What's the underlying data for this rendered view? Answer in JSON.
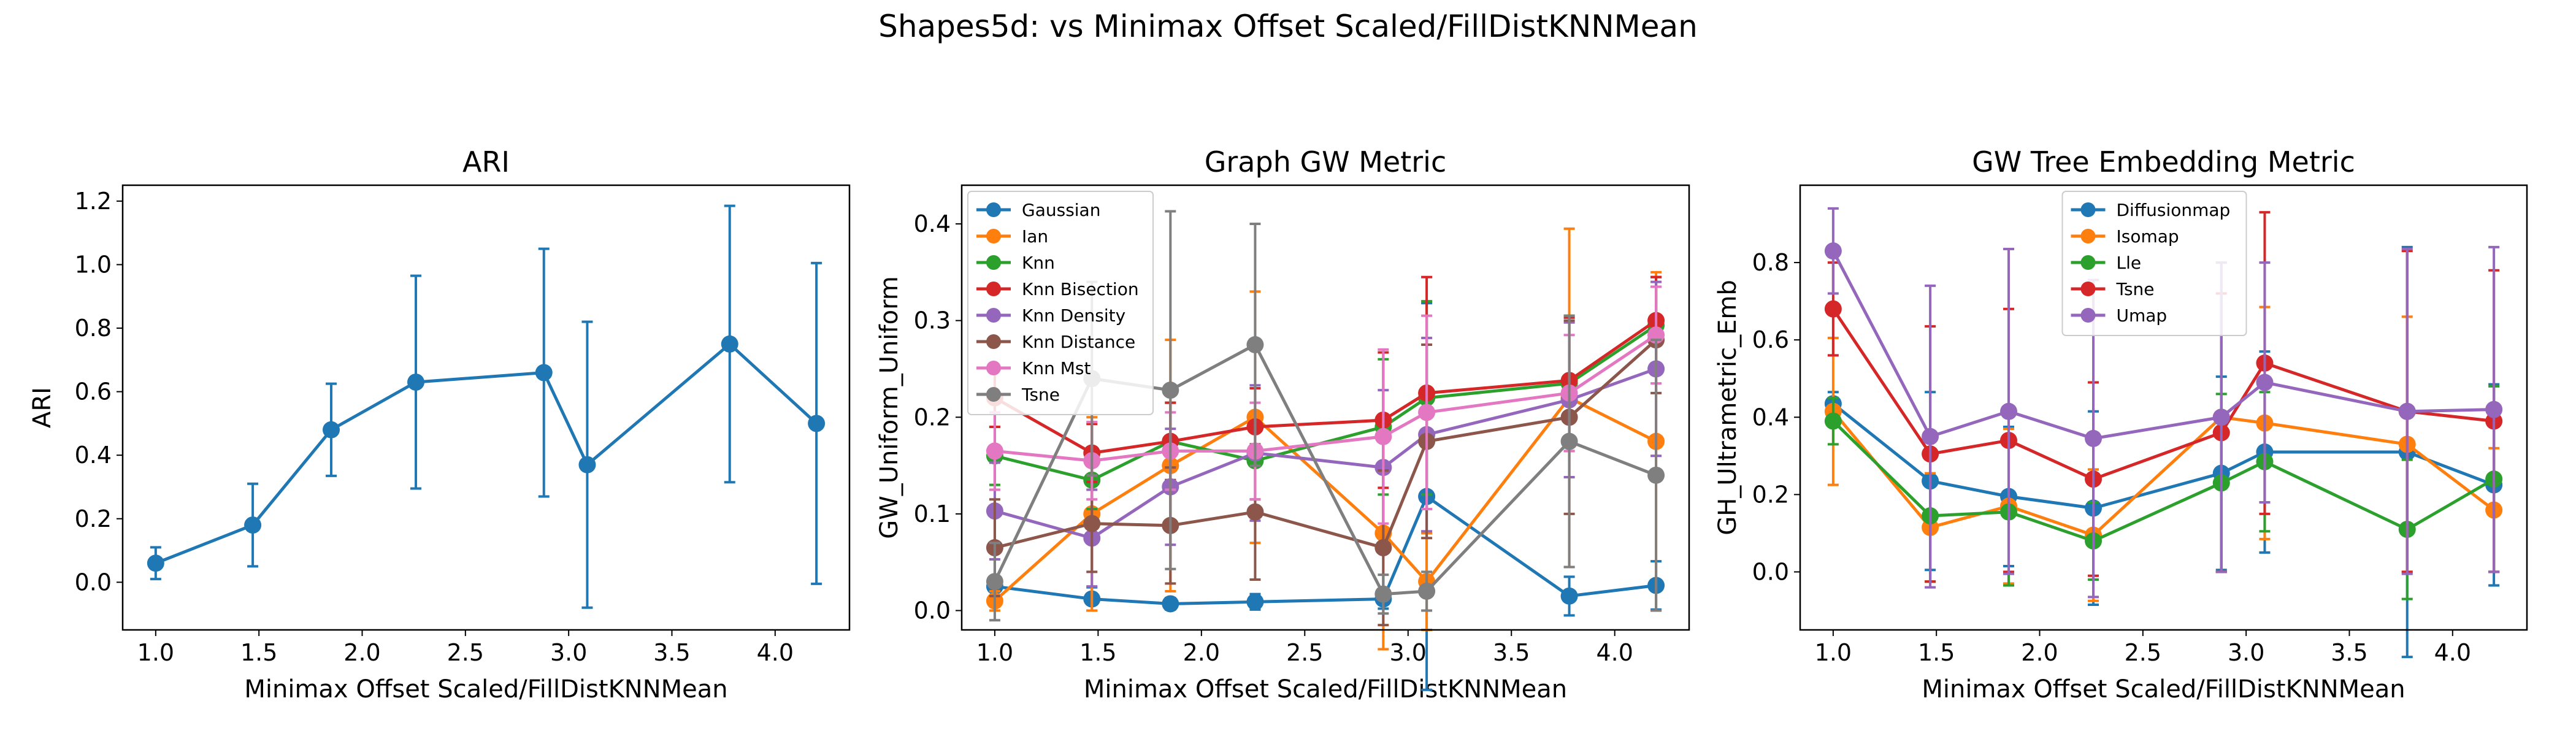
{
  "suptitle": "Shapes5d: vs Minimax Offset Scaled/FillDistKNNMean",
  "chart_data": [
    {
      "type": "line",
      "title": "ARI",
      "xlabel": "Minimax Offset Scaled/FillDistKNNMean",
      "ylabel": "ARI",
      "xlim": [
        0.84,
        4.36
      ],
      "ylim": [
        -0.15,
        1.25
      ],
      "xticks": [
        1.0,
        1.5,
        2.0,
        2.5,
        3.0,
        3.5,
        4.0
      ],
      "xtick_labels": [
        "1.0",
        "1.5",
        "2.0",
        "2.5",
        "3.0",
        "3.5",
        "4.0"
      ],
      "yticks": [
        0.0,
        0.2,
        0.4,
        0.6,
        0.8,
        1.0,
        1.2
      ],
      "ytick_labels": [
        "0.0",
        "0.2",
        "0.4",
        "0.6",
        "0.8",
        "1.0",
        "1.2"
      ],
      "legend": null,
      "x": [
        1.0,
        1.47,
        1.85,
        2.26,
        2.88,
        3.09,
        3.78,
        4.2
      ],
      "series": [
        {
          "name": "",
          "color": "#1f77b4",
          "values": [
            0.06,
            0.18,
            0.48,
            0.63,
            0.66,
            0.37,
            0.75,
            0.5
          ],
          "err": [
            0.05,
            0.13,
            0.145,
            0.335,
            0.39,
            0.45,
            0.435,
            0.505
          ]
        }
      ]
    },
    {
      "type": "line",
      "title": "Graph GW Metric",
      "xlabel": "Minimax Offset Scaled/FillDistKNNMean",
      "ylabel": "GW_Uniform_Uniform",
      "xlim": [
        0.84,
        4.36
      ],
      "ylim": [
        -0.02,
        0.44
      ],
      "xticks": [
        1.0,
        1.5,
        2.0,
        2.5,
        3.0,
        3.5,
        4.0
      ],
      "xtick_labels": [
        "1.0",
        "1.5",
        "2.0",
        "2.5",
        "3.0",
        "3.5",
        "4.0"
      ],
      "yticks": [
        0.0,
        0.1,
        0.2,
        0.3,
        0.4
      ],
      "ytick_labels": [
        "0.0",
        "0.1",
        "0.2",
        "0.3",
        "0.4"
      ],
      "legend": "upper-left",
      "x": [
        1.0,
        1.47,
        1.85,
        2.26,
        2.88,
        3.09,
        3.78,
        4.2
      ],
      "series": [
        {
          "name": "Gaussian",
          "color": "#1f77b4",
          "values": [
            0.025,
            0.012,
            0.007,
            0.009,
            0.012,
            0.118,
            0.015,
            0.026
          ],
          "err": [
            0.01,
            0.012,
            0.006,
            0.008,
            0.01,
            0.2,
            0.02,
            0.025
          ]
        },
        {
          "name": "Ian",
          "color": "#ff7f0e",
          "values": [
            0.01,
            0.1,
            0.15,
            0.2,
            0.08,
            0.03,
            0.22,
            0.175
          ],
          "err": [
            0.01,
            0.1,
            0.13,
            0.13,
            0.12,
            0.05,
            0.175,
            0.175
          ]
        },
        {
          "name": "Knn",
          "color": "#2ca02c",
          "values": [
            0.16,
            0.135,
            0.175,
            0.155,
            0.19,
            0.22,
            0.235,
            0.295
          ],
          "err": [
            0.03,
            0.03,
            0.04,
            0.04,
            0.07,
            0.1,
            0.07,
            0.05
          ]
        },
        {
          "name": "Knn Bisection",
          "color": "#d62728",
          "values": [
            0.22,
            0.163,
            0.175,
            0.19,
            0.197,
            0.225,
            0.238,
            0.3
          ],
          "err": [
            0.03,
            0.03,
            0.04,
            0.04,
            0.07,
            0.12,
            0.065,
            0.045
          ]
        },
        {
          "name": "Knn Density",
          "color": "#9467bd",
          "values": [
            0.103,
            0.075,
            0.128,
            0.163,
            0.148,
            0.182,
            0.218,
            0.25
          ],
          "err": [
            0.05,
            0.05,
            0.06,
            0.07,
            0.08,
            0.1,
            0.08,
            0.09
          ]
        },
        {
          "name": "Knn Distance",
          "color": "#8c564b",
          "values": [
            0.065,
            0.09,
            0.088,
            0.102,
            0.065,
            0.175,
            0.2,
            0.28
          ],
          "err": [
            0.05,
            0.05,
            0.06,
            0.07,
            0.08,
            0.1,
            0.1,
            0.055
          ]
        },
        {
          "name": "Knn Mst",
          "color": "#e377c2",
          "values": [
            0.165,
            0.155,
            0.165,
            0.165,
            0.18,
            0.205,
            0.225,
            0.285
          ],
          "err": [
            0.04,
            0.04,
            0.04,
            0.05,
            0.09,
            0.1,
            0.06,
            0.05
          ]
        },
        {
          "name": "Tsne",
          "color": "#7f7f7f",
          "values": [
            0.03,
            0.24,
            0.228,
            0.275,
            0.017,
            0.02,
            0.175,
            0.14
          ],
          "err": [
            0.04,
            0.1,
            0.185,
            0.125,
            0.02,
            0.02,
            0.13,
            0.14
          ]
        }
      ]
    },
    {
      "type": "line",
      "title": "GW Tree Embedding Metric",
      "xlabel": "Minimax Offset Scaled/FillDistKNNMean",
      "ylabel": "GH_Ultrametric_Emb",
      "xlim": [
        0.84,
        4.36
      ],
      "ylim": [
        -0.15,
        1.0
      ],
      "xticks": [
        1.0,
        1.5,
        2.0,
        2.5,
        3.0,
        3.5,
        4.0
      ],
      "xtick_labels": [
        "1.0",
        "1.5",
        "2.0",
        "2.5",
        "3.0",
        "3.5",
        "4.0"
      ],
      "yticks": [
        0.0,
        0.2,
        0.4,
        0.6,
        0.8
      ],
      "ytick_labels": [
        "0.0",
        "0.2",
        "0.4",
        "0.6",
        "0.8"
      ],
      "legend": "upper-center",
      "x": [
        1.0,
        1.47,
        1.85,
        2.26,
        2.88,
        3.09,
        3.78,
        4.2
      ],
      "series": [
        {
          "name": "Diffusionmap",
          "color": "#1f77b4",
          "values": [
            0.435,
            0.235,
            0.195,
            0.165,
            0.255,
            0.31,
            0.31,
            0.225
          ],
          "err": [
            0.03,
            0.23,
            0.18,
            0.25,
            0.25,
            0.26,
            0.53,
            0.26
          ]
        },
        {
          "name": "Isomap",
          "color": "#ff7f0e",
          "values": [
            0.415,
            0.115,
            0.17,
            0.095,
            0.4,
            0.385,
            0.33,
            0.16
          ],
          "err": [
            0.19,
            0.14,
            0.2,
            0.17,
            0.4,
            0.3,
            0.33,
            0.16
          ]
        },
        {
          "name": "Lle",
          "color": "#2ca02c",
          "values": [
            0.39,
            0.145,
            0.155,
            0.08,
            0.23,
            0.285,
            0.11,
            0.24
          ],
          "err": [
            0.06,
            0.17,
            0.19,
            0.1,
            0.23,
            0.18,
            0.18,
            0.24
          ]
        },
        {
          "name": "Tsne",
          "color": "#d62728",
          "values": [
            0.68,
            0.305,
            0.34,
            0.24,
            0.36,
            0.54,
            0.415,
            0.39
          ],
          "err": [
            0.12,
            0.33,
            0.34,
            0.25,
            0.36,
            0.39,
            0.415,
            0.39
          ]
        },
        {
          "name": "Umap",
          "color": "#9467bd",
          "values": [
            0.83,
            0.35,
            0.415,
            0.345,
            0.4,
            0.49,
            0.415,
            0.42
          ],
          "err": [
            0.11,
            0.39,
            0.42,
            0.41,
            0.4,
            0.31,
            0.42,
            0.42
          ]
        }
      ]
    }
  ]
}
